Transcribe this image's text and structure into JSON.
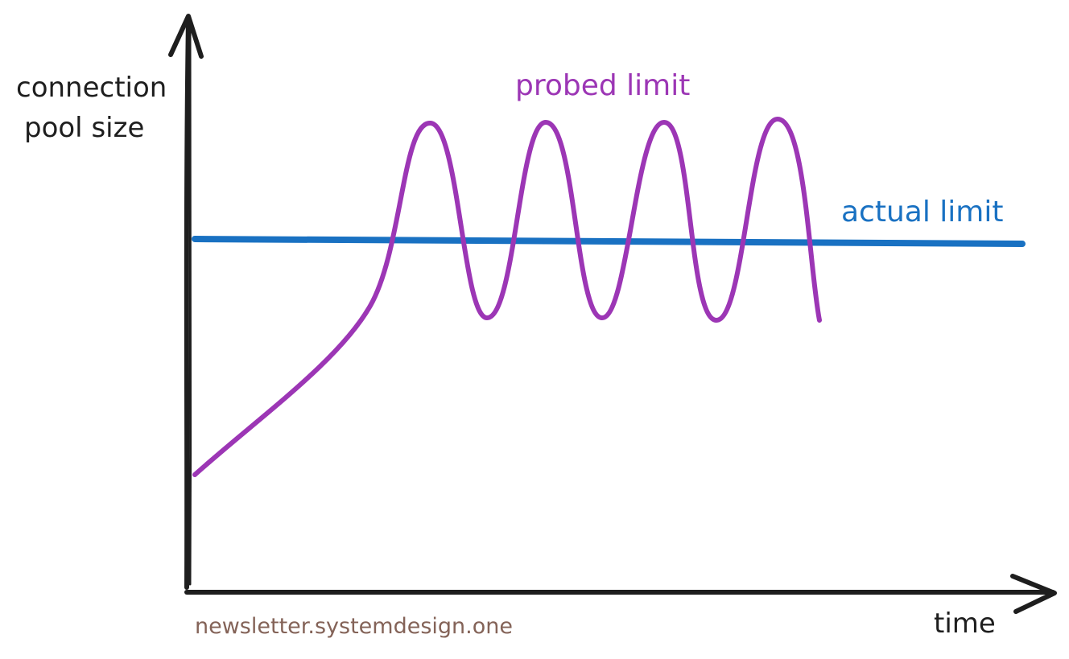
{
  "y_axis_label_lines": [
    "connection",
    "pool size"
  ],
  "x_axis_label": "time",
  "probed_label": "probed limit",
  "actual_label": "actual limit",
  "watermark": "newsletter.systemdesign.one",
  "colors": {
    "axis": "#1e1e1e",
    "probed": "#9c36b5",
    "actual": "#1971c2",
    "watermark": "#846358"
  }
}
